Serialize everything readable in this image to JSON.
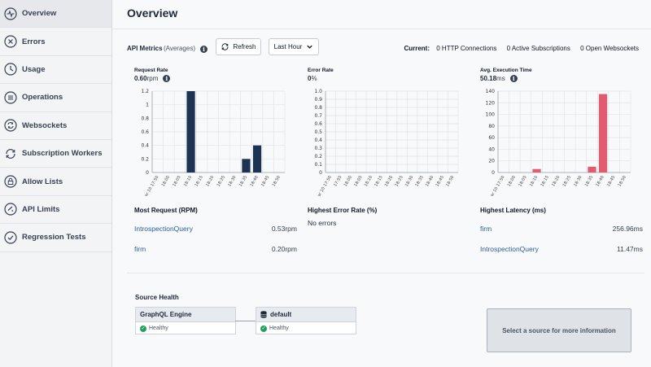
{
  "sidebar": {
    "items": [
      {
        "label": "Overview",
        "icon": "pulse-icon",
        "active": true
      },
      {
        "label": "Errors",
        "icon": "x-circle-icon"
      },
      {
        "label": "Usage",
        "icon": "clock-icon"
      },
      {
        "label": "Operations",
        "icon": "list-circle-icon"
      },
      {
        "label": "Websockets",
        "icon": "sync-icon"
      },
      {
        "label": "Subscription Workers",
        "icon": "refresh-icon"
      },
      {
        "label": "Allow Lists",
        "icon": "lock-icon"
      },
      {
        "label": "API Limits",
        "icon": "sliders-icon"
      },
      {
        "label": "Regression Tests",
        "icon": "check-circle-icon"
      }
    ]
  },
  "header": {
    "title": "Overview"
  },
  "metrics": {
    "label": "API Metrics",
    "sub": "(Averages)",
    "refresh_label": "Refresh",
    "range_label": "Last Hour",
    "current_label": "Current:",
    "http_connections": "0",
    "http_connections_label": "HTTP Connections",
    "active_subscriptions": "0",
    "active_subscriptions_label": "Active Subscriptions",
    "open_websockets": "0",
    "open_websockets_label": "Open Websockets"
  },
  "chart_data": [
    {
      "type": "bar",
      "title": "Request Rate",
      "value": "0.60",
      "unit": "rpm",
      "color": "#1c3354",
      "categories": [
        "Mar 10 17:50",
        "18:00",
        "18:05",
        "18:10",
        "18:15",
        "18:20",
        "18:25",
        "18:30",
        "18:35",
        "18:40",
        "18:45",
        "18:50"
      ],
      "values": [
        0,
        0,
        0,
        1.2,
        0,
        0,
        0,
        0,
        0.2,
        0.4,
        0,
        0
      ],
      "yticks": [
        "0",
        "0.2",
        "0.4",
        "0.6",
        "0.8",
        "1",
        "1.2"
      ],
      "ylim": [
        0,
        1.2
      ]
    },
    {
      "type": "bar",
      "title": "Error Rate",
      "value": "0",
      "unit": "%",
      "color": "#1c3354",
      "categories": [
        "Mar 10 17:50",
        "17:55",
        "18:00",
        "18:05",
        "18:10",
        "18:15",
        "18:20",
        "18:25",
        "18:30",
        "18:35",
        "18:40",
        "18:45",
        "18:50"
      ],
      "values": [
        0,
        0,
        0,
        0,
        0,
        0,
        0,
        0,
        0,
        0,
        0,
        0,
        0
      ],
      "yticks": [
        "0",
        "0.1",
        "0.2",
        "0.3",
        "0.4",
        "0.5",
        "0.6",
        "0.7",
        "0.8",
        "0.9",
        "1.0"
      ],
      "ylim": [
        0,
        1.0
      ]
    },
    {
      "type": "bar",
      "title": "Avg. Execution Time",
      "value": "50.18",
      "unit": "ms",
      "color": "#e25c6f",
      "categories": [
        "Mar 10 17:50",
        "18:00",
        "18:05",
        "18:10",
        "18:15",
        "18:20",
        "18:25",
        "18:30",
        "18:35",
        "18:40",
        "18:45",
        "18:50"
      ],
      "values": [
        0,
        0,
        0,
        6,
        0,
        0,
        0,
        0,
        10,
        135,
        0,
        0
      ],
      "yticks": [
        "0",
        "20",
        "40",
        "60",
        "80",
        "100",
        "120",
        "140"
      ],
      "ylim": [
        0,
        140
      ]
    }
  ],
  "most_request": {
    "title": "Most Request (RPM)",
    "rows": [
      {
        "name": "IntrospectionQuery",
        "value": "0.53rpm"
      },
      {
        "name": "firm",
        "value": "0.20rpm"
      }
    ]
  },
  "highest_error": {
    "title": "Highest Error Rate (%)",
    "empty": "No errors"
  },
  "highest_latency": {
    "title": "Highest Latency (ms)",
    "rows": [
      {
        "name": "firm",
        "value": "256.96ms"
      },
      {
        "name": "IntrospectionQuery",
        "value": "11.47ms"
      }
    ]
  },
  "source_health": {
    "title": "Source Health",
    "engine": {
      "name": "GraphQL Engine",
      "status": "Healthy"
    },
    "source": {
      "name": "default",
      "status": "Healthy"
    },
    "info_prompt": "Select a source for more information"
  }
}
